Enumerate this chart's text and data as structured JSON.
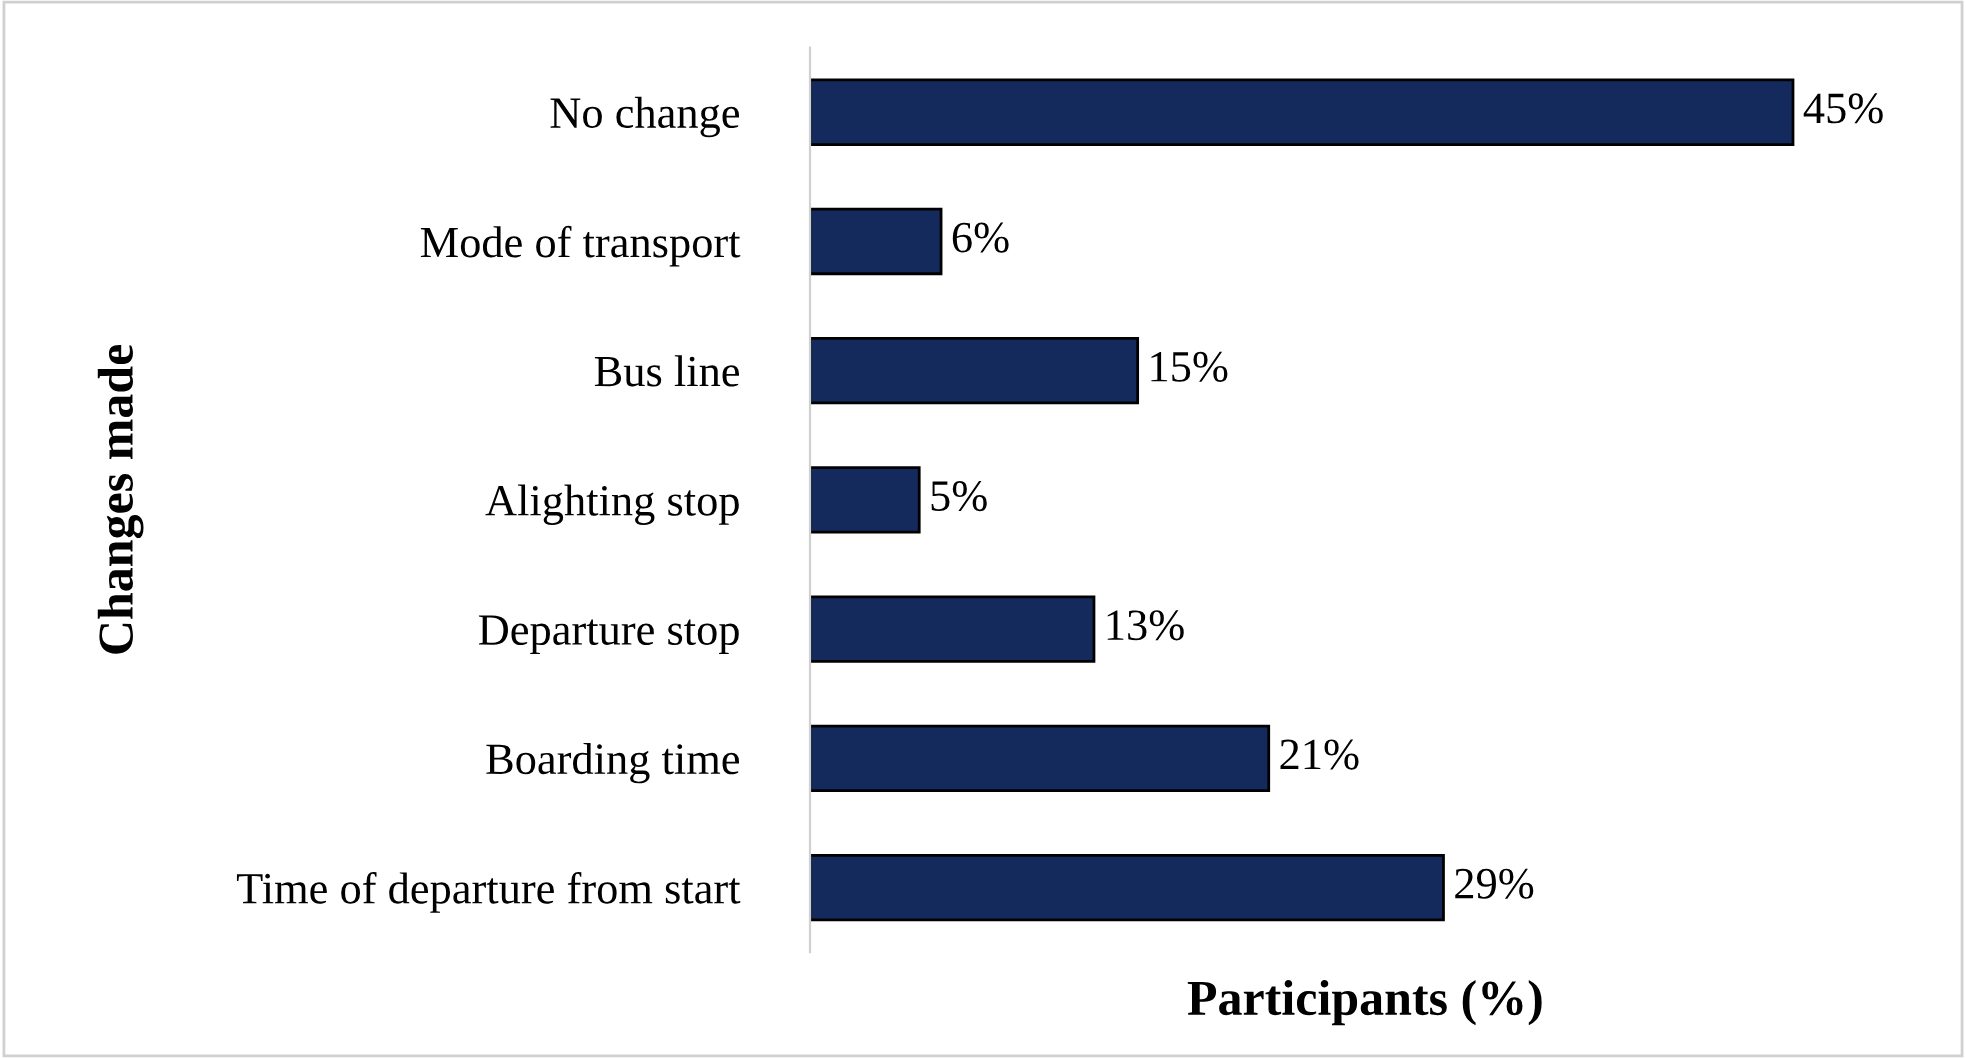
{
  "chart_data": {
    "type": "bar",
    "orientation": "horizontal",
    "xlabel": "Participants (%)",
    "ylabel": "Changes made",
    "categories": [
      "No change",
      "Mode of transport",
      "Bus line",
      "Alighting stop",
      "Departure stop",
      "Boarding time",
      "Time of departure from start"
    ],
    "series": [
      {
        "color": "#142a5c",
        "values": [
          45,
          6,
          15,
          5,
          13,
          21,
          29
        ],
        "value_labels": [
          "45%",
          "6%",
          "15%",
          "5%",
          "13%",
          "21%",
          "29%"
        ]
      }
    ],
    "grid": false,
    "legend": false
  }
}
